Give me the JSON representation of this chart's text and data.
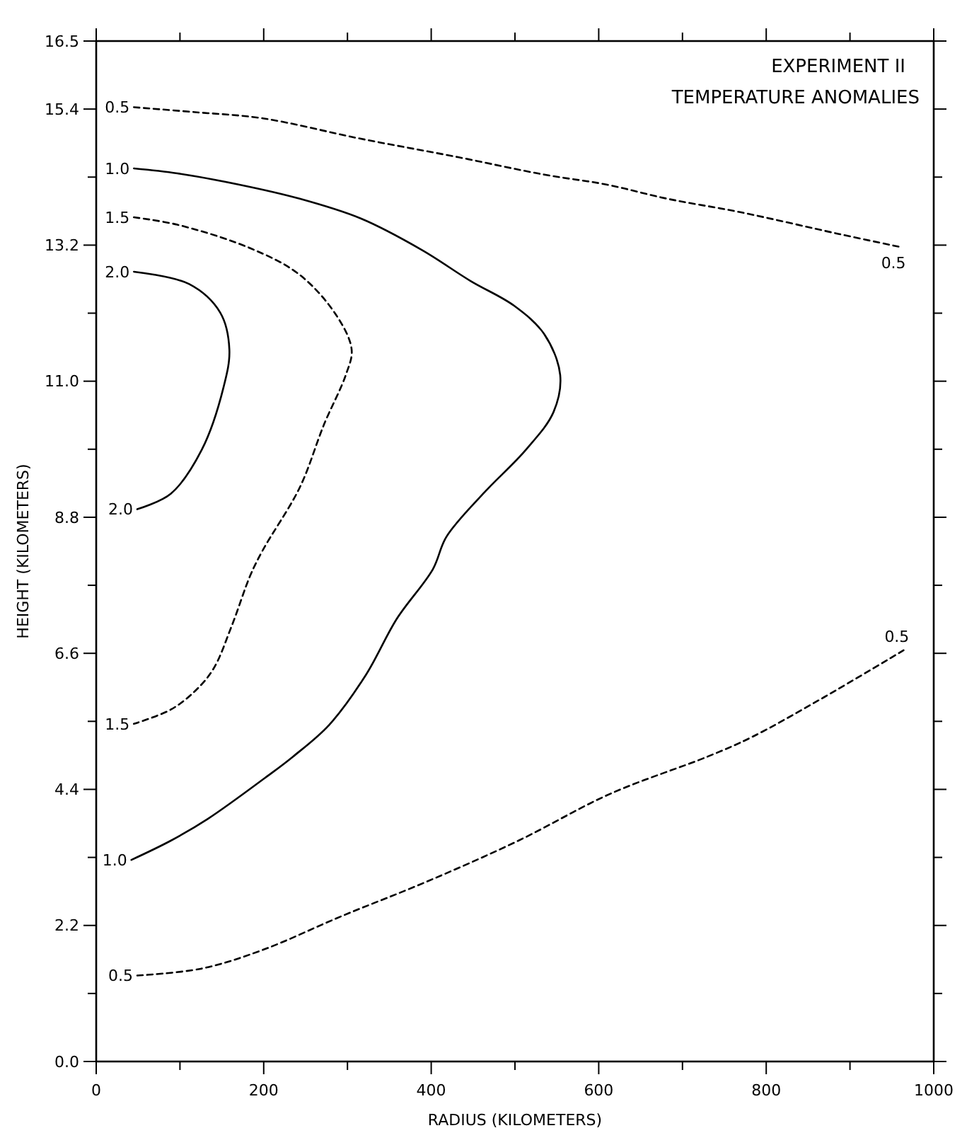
{
  "chart_data": {
    "type": "line",
    "title": "EXPERIMENT II",
    "subtitle": "TEMPERATURE ANOMALIES",
    "xlabel": "RADIUS (KILOMETERS)",
    "ylabel": "HEIGHT (KILOMETERS)",
    "xlim": [
      0,
      1000
    ],
    "ylim": [
      0,
      16.5
    ],
    "xticks": [
      0,
      {
        "value": 100,
        "label": null
      },
      200,
      {
        "value": 300,
        "label": null
      },
      400,
      {
        "value": 500,
        "label": null
      },
      600,
      {
        "value": 700,
        "label": null
      },
      800,
      {
        "value": 900,
        "label": null
      },
      1000
    ],
    "yticks": [
      {
        "value": 0,
        "label": "0.0"
      },
      {
        "value": 1.1,
        "label": null
      },
      2.2,
      {
        "value": 3.3,
        "label": null
      },
      4.4,
      {
        "value": 5.5,
        "label": null
      },
      6.6,
      {
        "value": 7.7,
        "label": null
      },
      8.8,
      {
        "value": 9.9,
        "label": null
      },
      {
        "value": 11,
        "label": "11.0"
      },
      {
        "value": 12.1,
        "label": null
      },
      13.2,
      {
        "value": 14.3,
        "label": null
      },
      15.4,
      16.5
    ],
    "grid": false,
    "series": [
      {
        "name": "0.5",
        "color": "#000000",
        "line_style": "dashed",
        "x": [
          45,
          118,
          199,
          316,
          433,
          535,
          609,
          682,
          770,
          887,
          960
        ],
        "values": [
          15.43,
          15.35,
          15.25,
          14.92,
          14.62,
          14.34,
          14.18,
          13.95,
          13.73,
          13.38,
          13.17
        ]
      },
      {
        "name": "1.0",
        "color": "#000000",
        "line_style": "solid",
        "x": [
          45,
          97,
          170,
          243,
          316,
          389,
          447,
          499,
          535,
          554,
          546,
          513,
          462,
          418,
          402,
          359,
          322,
          278,
          235,
          206,
          133,
          89,
          42
        ],
        "values": [
          14.44,
          14.36,
          14.18,
          13.95,
          13.63,
          13.12,
          12.62,
          12.22,
          11.76,
          11.1,
          10.5,
          9.89,
          9.18,
          8.48,
          7.96,
          7.16,
          6.25,
          5.44,
          4.93,
          4.63,
          3.92,
          3.57,
          3.26
        ]
      },
      {
        "name": "1.5",
        "color": "#000000",
        "line_style": "dashed",
        "x": [
          45,
          97,
          184,
          243,
          287,
          305,
          298,
          272,
          243,
          199,
          184,
          162,
          140,
          118,
          89,
          45
        ],
        "values": [
          13.65,
          13.53,
          13.15,
          12.72,
          12.06,
          11.51,
          11.1,
          10.3,
          9.28,
          8.27,
          7.86,
          7.05,
          6.35,
          5.99,
          5.69,
          5.46
        ]
      },
      {
        "name": "2.0",
        "color": "#000000",
        "line_style": "solid",
        "x": [
          45,
          111,
          148,
          159,
          152,
          126,
          89,
          49
        ],
        "values": [
          12.77,
          12.57,
          12.11,
          11.51,
          10.9,
          9.89,
          9.18,
          8.93
        ]
      },
      {
        "name": "0.5",
        "color": "#000000",
        "line_style": "dashed",
        "x": [
          49,
          125,
          198,
          293,
          395,
          504,
          614,
          730,
          782,
          869,
          964
        ],
        "values": [
          1.39,
          1.5,
          1.8,
          2.35,
          2.91,
          3.57,
          4.33,
          4.93,
          5.24,
          5.89,
          6.65
        ]
      }
    ]
  }
}
